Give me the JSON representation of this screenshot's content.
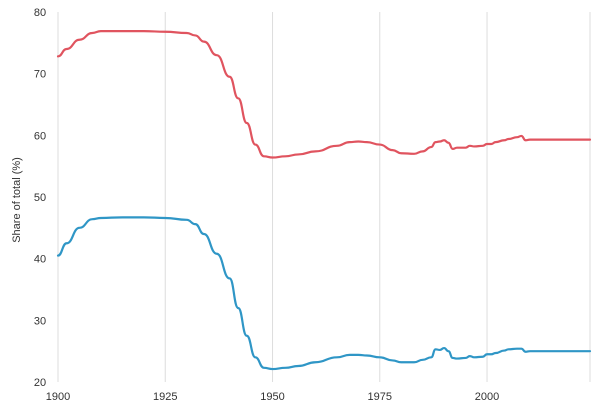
{
  "chart_data": {
    "type": "line",
    "title": "",
    "xlabel": "",
    "ylabel": "Share of total (%)",
    "xlim": [
      1900,
      2024
    ],
    "ylim": [
      20,
      80
    ],
    "x_ticks": [
      1900,
      1925,
      1950,
      1975,
      2000
    ],
    "y_ticks": [
      20,
      30,
      40,
      50,
      60,
      70,
      80
    ],
    "grid": "vertical",
    "series": [
      {
        "color": "#e0545f",
        "points": [
          [
            1900,
            72.8
          ],
          [
            1902,
            74.0
          ],
          [
            1905,
            75.5
          ],
          [
            1908,
            76.6
          ],
          [
            1910,
            76.9
          ],
          [
            1915,
            76.9
          ],
          [
            1920,
            76.9
          ],
          [
            1925,
            76.8
          ],
          [
            1930,
            76.6
          ],
          [
            1932,
            76.2
          ],
          [
            1934,
            75.2
          ],
          [
            1937,
            73.0
          ],
          [
            1940,
            69.5
          ],
          [
            1942,
            66.0
          ],
          [
            1944,
            62.0
          ],
          [
            1946,
            58.5
          ],
          [
            1948,
            56.6
          ],
          [
            1950,
            56.4
          ],
          [
            1953,
            56.6
          ],
          [
            1956,
            56.9
          ],
          [
            1960,
            57.4
          ],
          [
            1965,
            58.3
          ],
          [
            1968,
            58.9
          ],
          [
            1970,
            59.0
          ],
          [
            1972,
            58.9
          ],
          [
            1975,
            58.5
          ],
          [
            1978,
            57.6
          ],
          [
            1980,
            57.1
          ],
          [
            1983,
            57.0
          ],
          [
            1985,
            57.4
          ],
          [
            1987,
            58.1
          ],
          [
            1988,
            58.9
          ],
          [
            1989,
            59.0
          ],
          [
            1990,
            59.2
          ],
          [
            1991,
            58.8
          ],
          [
            1992,
            57.8
          ],
          [
            1993,
            58.0
          ],
          [
            1995,
            58.0
          ],
          [
            1996,
            58.3
          ],
          [
            1997,
            58.2
          ],
          [
            1999,
            58.3
          ],
          [
            2000,
            58.6
          ],
          [
            2001,
            58.6
          ],
          [
            2002,
            58.9
          ],
          [
            2004,
            59.2
          ],
          [
            2005,
            59.4
          ],
          [
            2007,
            59.7
          ],
          [
            2008,
            59.9
          ],
          [
            2009,
            59.2
          ],
          [
            2010,
            59.3
          ],
          [
            2012,
            59.3
          ],
          [
            2015,
            59.3
          ],
          [
            2018,
            59.3
          ],
          [
            2020,
            59.3
          ],
          [
            2022,
            59.3
          ],
          [
            2024,
            59.3
          ]
        ]
      },
      {
        "color": "#2f96c6",
        "points": [
          [
            1900,
            40.5
          ],
          [
            1902,
            42.5
          ],
          [
            1905,
            45.0
          ],
          [
            1908,
            46.4
          ],
          [
            1910,
            46.6
          ],
          [
            1915,
            46.7
          ],
          [
            1920,
            46.7
          ],
          [
            1925,
            46.6
          ],
          [
            1930,
            46.3
          ],
          [
            1932,
            45.6
          ],
          [
            1934,
            44.0
          ],
          [
            1937,
            40.8
          ],
          [
            1940,
            36.8
          ],
          [
            1942,
            32.0
          ],
          [
            1944,
            27.5
          ],
          [
            1946,
            24.0
          ],
          [
            1948,
            22.3
          ],
          [
            1950,
            22.1
          ],
          [
            1953,
            22.3
          ],
          [
            1956,
            22.6
          ],
          [
            1960,
            23.2
          ],
          [
            1965,
            24.0
          ],
          [
            1968,
            24.4
          ],
          [
            1970,
            24.4
          ],
          [
            1972,
            24.3
          ],
          [
            1975,
            24.0
          ],
          [
            1978,
            23.5
          ],
          [
            1980,
            23.2
          ],
          [
            1983,
            23.2
          ],
          [
            1985,
            23.6
          ],
          [
            1987,
            24.0
          ],
          [
            1988,
            25.3
          ],
          [
            1989,
            25.2
          ],
          [
            1990,
            25.5
          ],
          [
            1991,
            25.0
          ],
          [
            1992,
            23.9
          ],
          [
            1993,
            23.8
          ],
          [
            1995,
            23.9
          ],
          [
            1996,
            24.2
          ],
          [
            1997,
            24.0
          ],
          [
            1999,
            24.1
          ],
          [
            2000,
            24.5
          ],
          [
            2001,
            24.5
          ],
          [
            2002,
            24.7
          ],
          [
            2004,
            25.1
          ],
          [
            2005,
            25.3
          ],
          [
            2007,
            25.4
          ],
          [
            2008,
            25.4
          ],
          [
            2009,
            24.9
          ],
          [
            2010,
            25.0
          ],
          [
            2012,
            25.0
          ],
          [
            2015,
            25.0
          ],
          [
            2018,
            25.0
          ],
          [
            2020,
            25.0
          ],
          [
            2022,
            25.0
          ],
          [
            2024,
            25.0
          ]
        ]
      }
    ]
  }
}
